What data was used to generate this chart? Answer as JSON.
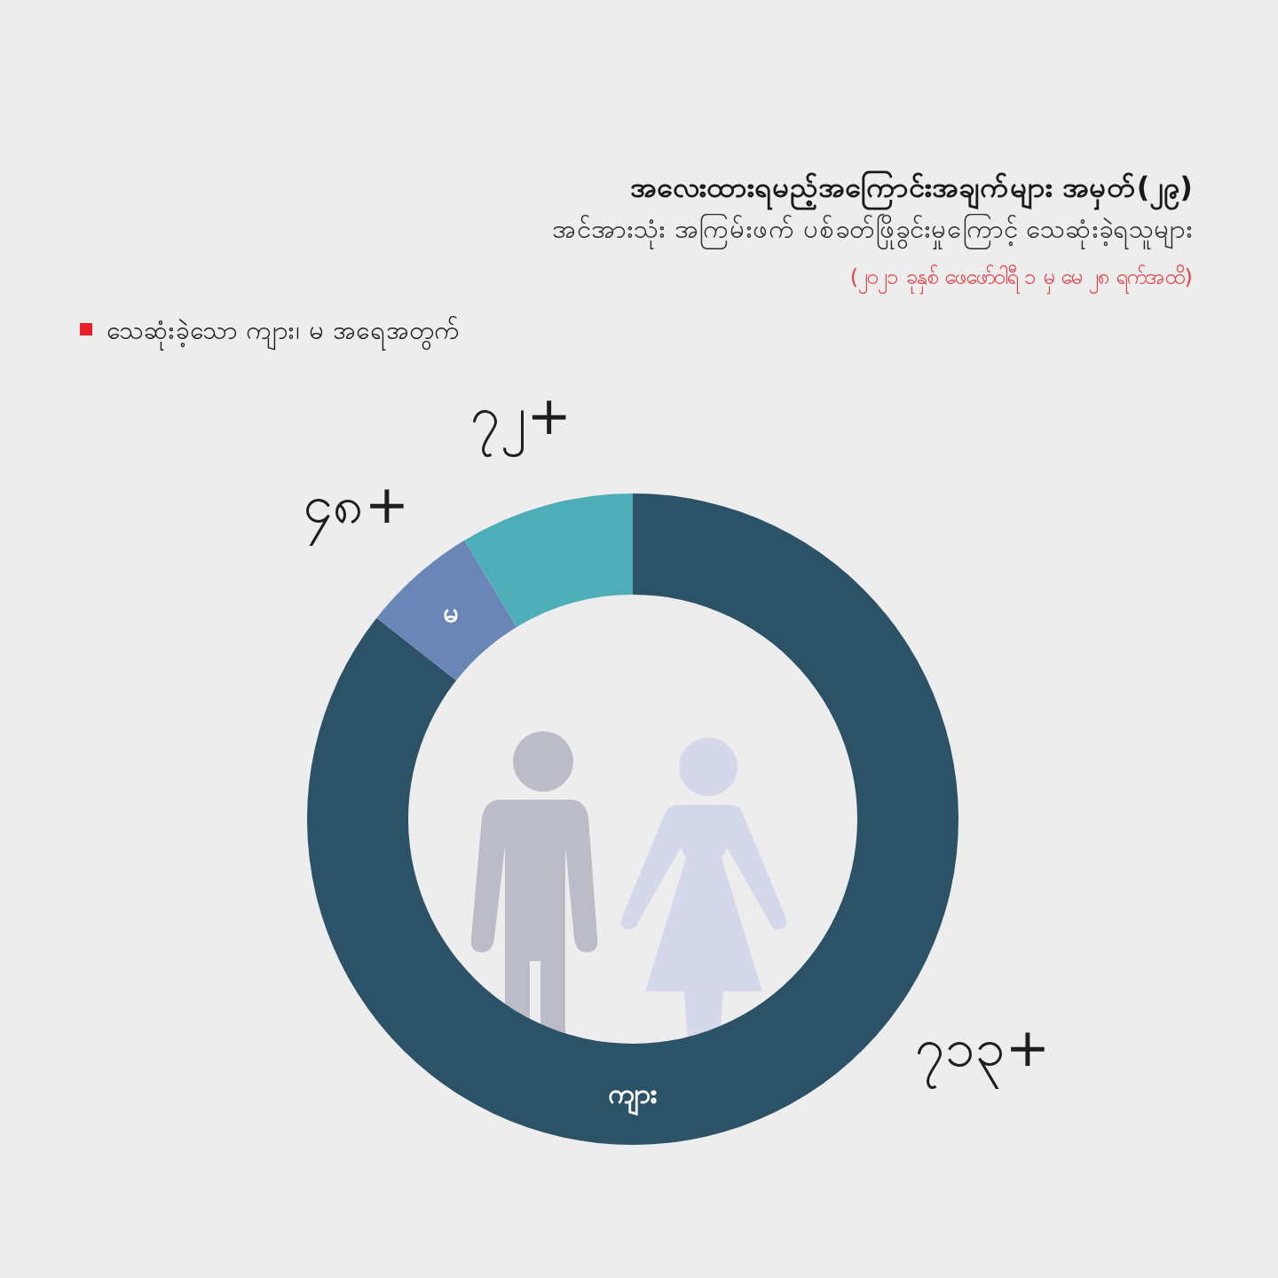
{
  "chart_data": {
    "type": "donut",
    "title": "အလေးထားရမည့်အကြောင်းအချက်များ အမှတ်(၂၉)",
    "subtitle": "အင်အားသုံး အကြမ်းဖက် ပစ်ခတ်ဖြိုခွင်းမှုကြောင့် သေဆုံးခဲ့ရသူများ",
    "annotations": [
      "(၂၀၂၁ ခုနှစ် ဖေဖော်ဝါရီ ၁ မှ မေ ၂၈ ရက်အထိ)",
      "သေဆုံးခဲ့သော ကျား၊ မ အရေအတွက်"
    ],
    "categories": [
      "ကျား",
      "မ",
      null
    ],
    "values": [
      713,
      48,
      72
    ],
    "colors": [
      "#2c5268",
      "#6a86b6",
      "#4eaeb7"
    ],
    "value_labels": [
      "၇၁၃+",
      "၄၈+",
      "၇၂+"
    ]
  }
}
